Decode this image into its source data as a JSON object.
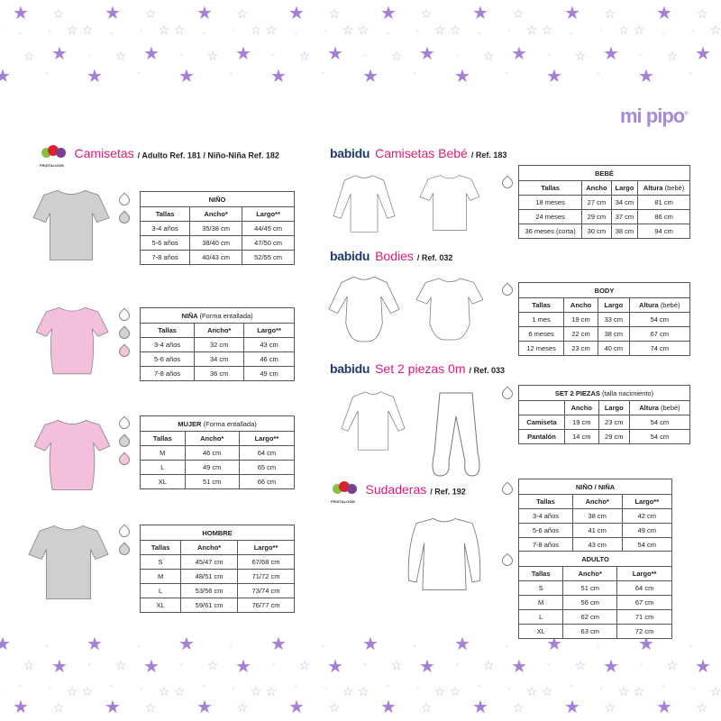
{
  "brand": {
    "logo": "mi pipo",
    "logo_mark": "®",
    "star_color": "#a67fd6",
    "accent": "#e0197d",
    "babidu_color": "#1f3a6b"
  },
  "sections": {
    "camisetas": {
      "brand": "FRUIT of the LOOM",
      "name": "Camisetas",
      "ref": "/ Adulto Ref. 181 / Niño-Niña Ref. 182"
    },
    "bebe": {
      "brand": "babidu",
      "name": "Camisetas Bebé",
      "ref": "/ Ref. 183"
    },
    "bodies": {
      "brand": "babidu",
      "name": "Bodies",
      "ref": "/ Ref. 032"
    },
    "set": {
      "brand": "babidu",
      "name": "Set 2 piezas 0m",
      "ref": "/ Ref. 033"
    },
    "sudaderas": {
      "brand": "FRUIT of the LOOM",
      "name": "Sudaderas",
      "ref": "/ Ref. 192"
    }
  },
  "colors": {
    "white": "#ffffff",
    "gray": "#d3d3d3",
    "pink": "#f5c4de"
  },
  "tables": {
    "nino": {
      "title": "NIÑO",
      "note": "",
      "columns": [
        "Tallas",
        "Ancho*",
        "Largo**"
      ],
      "rows": [
        [
          "3-4 años",
          "35/38 cm",
          "44/45 cm"
        ],
        [
          "5-6 años",
          "38/40 cm",
          "47/50 cm"
        ],
        [
          "7-8 años",
          "40/43 cm",
          "52/55 cm"
        ]
      ]
    },
    "nina": {
      "title": "NIÑA",
      "note": "(Forma entallada)",
      "columns": [
        "Tallas",
        "Ancho*",
        "Largo**"
      ],
      "rows": [
        [
          "3-4 años",
          "32 cm",
          "43 cm"
        ],
        [
          "5-6 años",
          "34 cm",
          "46 cm"
        ],
        [
          "7-8 años",
          "36 cm",
          "49 cm"
        ]
      ]
    },
    "mujer": {
      "title": "MUJER",
      "note": "(Forma entallada)",
      "columns": [
        "Tallas",
        "Ancho*",
        "Largo**"
      ],
      "rows": [
        [
          "M",
          "46 cm",
          "64 cm"
        ],
        [
          "L",
          "49 cm",
          "65 cm"
        ],
        [
          "XL",
          "51 cm",
          "66 cm"
        ]
      ]
    },
    "hombre": {
      "title": "HOMBRE",
      "note": "",
      "columns": [
        "Tallas",
        "Ancho*",
        "Largo**"
      ],
      "rows": [
        [
          "S",
          "45/47 cm",
          "67/68 cm"
        ],
        [
          "M",
          "48/51 cm",
          "71/72 cm"
        ],
        [
          "L",
          "53/56 cm",
          "73/74 cm"
        ],
        [
          "XL",
          "59/61 cm",
          "76/77 cm"
        ]
      ]
    },
    "bebe": {
      "title": "BEBÉ",
      "note": "",
      "columns": [
        "Tallas",
        "Ancho",
        "Largo",
        "Altura|(bebé)"
      ],
      "rows": [
        [
          "18 meses",
          "27 cm",
          "34 cm",
          "81 cm"
        ],
        [
          "24 meses",
          "29 cm",
          "37 cm",
          "86 cm"
        ],
        [
          "36 meses (corta)",
          "30 cm",
          "38 cm",
          "94 cm"
        ]
      ]
    },
    "body": {
      "title": "BODY",
      "note": "",
      "columns": [
        "Tallas",
        "Ancho",
        "Largo",
        "Altura|(bebé)"
      ],
      "rows": [
        [
          "1 mes",
          "19 cm",
          "33 cm",
          "54 cm"
        ],
        [
          "6 meses",
          "22 cm",
          "38 cm",
          "67 cm"
        ],
        [
          "12 meses",
          "23 cm",
          "40 cm",
          "74 cm"
        ]
      ]
    },
    "set": {
      "title": "SET 2 PIEZAS",
      "note": "(talla nacimiento)",
      "columns": [
        "",
        "Ancho",
        "Largo",
        "Altura|(bebé)"
      ],
      "rows": [
        [
          "Camiseta",
          "19 cm",
          "23 cm",
          "54 cm"
        ],
        [
          "Pantalón",
          "14 cm",
          "29 cm",
          "54 cm"
        ]
      ]
    },
    "sud_nino": {
      "title": "NIÑO / NIÑA",
      "note": "",
      "columns": [
        "Tallas",
        "Ancho*",
        "Largo**"
      ],
      "rows": [
        [
          "3-4 años",
          "38 cm",
          "42 cm"
        ],
        [
          "5-6 años",
          "41 cm",
          "49 cm"
        ],
        [
          "7-8 años",
          "43 cm",
          "54 cm"
        ]
      ]
    },
    "sud_adulto": {
      "title": "ADULTO",
      "note": "",
      "columns": [
        "Tallas",
        "Ancho*",
        "Largo**"
      ],
      "rows": [
        [
          "S",
          "51 cm",
          "64 cm"
        ],
        [
          "M",
          "56 cm",
          "67 cm"
        ],
        [
          "L",
          "62 cm",
          "71 cm"
        ],
        [
          "XL",
          "63 cm",
          "72 cm"
        ]
      ]
    }
  }
}
